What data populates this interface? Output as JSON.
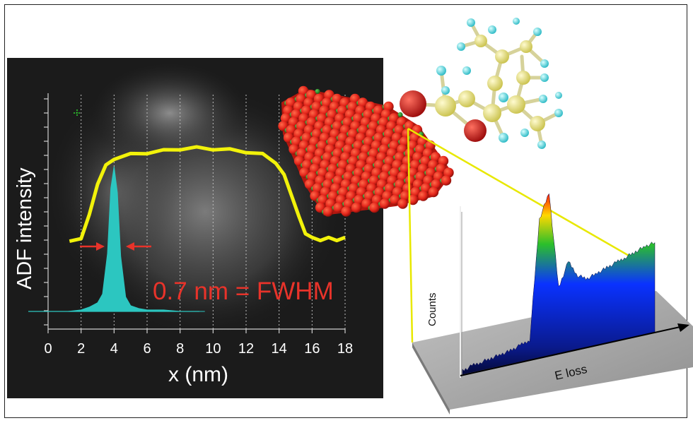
{
  "colors": {
    "background": "#ffffff",
    "panel": "#1a1a1a",
    "profile_line": "#f2f20a",
    "peak_fill": "#2cc6c0",
    "annotation": "#e8332a",
    "arrow": "#e8332a",
    "cluster_red": "#e3261b",
    "cluster_green": "#2a8a2a",
    "wireframe": "#e8e800",
    "slab": "#a6a6a6"
  },
  "adf_panel": {
    "ylabel": "ADF intensity",
    "xlabel": "x (nm)",
    "xticks": [
      "0",
      "2",
      "4",
      "6",
      "8",
      "10",
      "12",
      "14",
      "16",
      "18"
    ],
    "annotation": "0.7 nm = FWHM",
    "marker_icon": "crosshair-icon"
  },
  "eels_panel": {
    "ylabel": "Counts",
    "xlabel": "E loss"
  },
  "chart_data": [
    {
      "type": "line",
      "ylabel": "ADF intensity",
      "xlabel": "x (nm)",
      "xlim": [
        0,
        18
      ],
      "grid": true,
      "series": [
        {
          "x": [
            1.3,
            2.0,
            2.5,
            3.0,
            3.5,
            4.0,
            5.0,
            6.0,
            7.0,
            8.0,
            9.0,
            10.0,
            11.0,
            12.0,
            13.0,
            13.8,
            14.3,
            14.8,
            15.2,
            15.6,
            16.0,
            16.5,
            17.0,
            17.5,
            18.0
          ],
          "y": [
            0.0,
            0.05,
            0.28,
            0.62,
            0.8,
            0.88,
            0.92,
            0.94,
            0.96,
            0.98,
            0.99,
            0.98,
            0.97,
            0.95,
            0.92,
            0.84,
            0.7,
            0.48,
            0.26,
            0.1,
            0.04,
            0.03,
            0.04,
            0.03,
            0.04
          ]
        },
        {
          "x": [
            1.2,
            2.0,
            2.5,
            3.0,
            3.3,
            3.6,
            3.8,
            4.0,
            4.2,
            4.4,
            4.7,
            5.0,
            5.5,
            6.0,
            7.0,
            8.0,
            9.5
          ],
          "y": [
            0.0,
            0.01,
            0.03,
            0.06,
            0.12,
            0.4,
            0.85,
            1.0,
            0.82,
            0.38,
            0.1,
            0.04,
            0.02,
            0.01,
            0.01,
            0.0,
            0.0
          ]
        }
      ]
    },
    {
      "type": "area",
      "ylabel": "Counts",
      "xlabel": "E loss",
      "series": [
        {
          "x": [
            0,
            5,
            10,
            15,
            20,
            25,
            30,
            35,
            40,
            45,
            50,
            55,
            60,
            65,
            70,
            75,
            80,
            85,
            90,
            95,
            100
          ],
          "y": [
            0.02,
            0.04,
            0.05,
            0.06,
            0.07,
            0.08,
            0.1,
            0.12,
            0.85,
            1.0,
            0.4,
            0.55,
            0.45,
            0.42,
            0.44,
            0.46,
            0.48,
            0.5,
            0.52,
            0.54,
            0.55
          ]
        }
      ]
    }
  ]
}
